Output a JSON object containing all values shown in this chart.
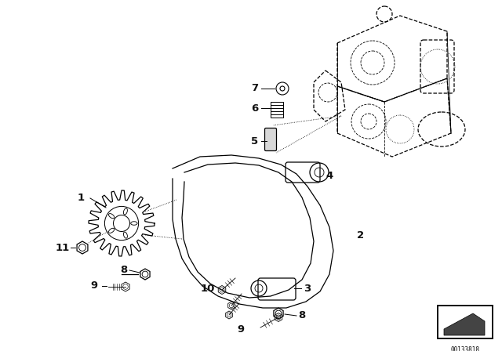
{
  "background_color": "#ffffff",
  "line_color": "#000000",
  "fig_width": 6.4,
  "fig_height": 4.48,
  "dpi": 100,
  "watermark": "00133818"
}
